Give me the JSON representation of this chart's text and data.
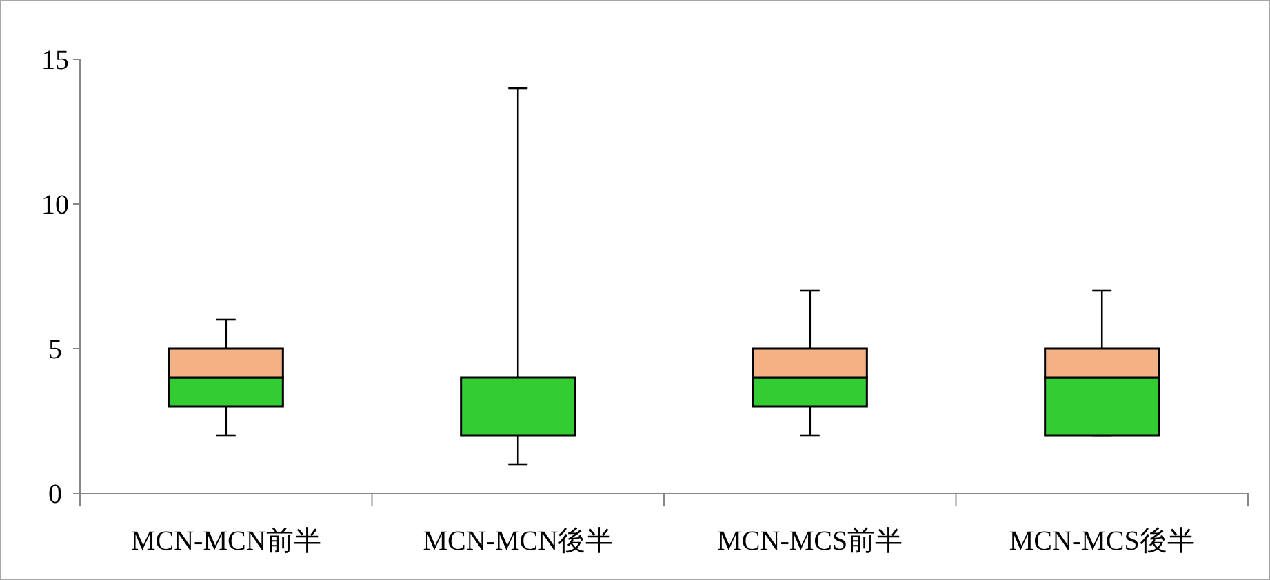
{
  "chart_data": {
    "type": "box",
    "categories": [
      "MCN-MCN前半",
      "MCN-MCN後半",
      "MCN-MCS前半",
      "MCN-MCS後半"
    ],
    "boxes": [
      {
        "low": 2,
        "q1": 3,
        "median": 4,
        "q3": 5,
        "high": 6
      },
      {
        "low": 1,
        "q1": 2,
        "median": 4,
        "q3": 4,
        "high": 14
      },
      {
        "low": 2,
        "q1": 3,
        "median": 4,
        "q3": 5,
        "high": 7
      },
      {
        "low": 2,
        "q1": 2,
        "median": 4,
        "q3": 5,
        "high": 7
      }
    ],
    "colors": [
      [
        "#33cc33",
        "#f4b183"
      ],
      [
        "#33cc33",
        "#f4b183"
      ],
      [
        "#33cc33",
        "#f4b183"
      ],
      [
        "#33cc33",
        "#f4b183"
      ]
    ],
    "ylim": [
      0,
      15
    ],
    "yticks": [
      0,
      5,
      10,
      15
    ]
  }
}
